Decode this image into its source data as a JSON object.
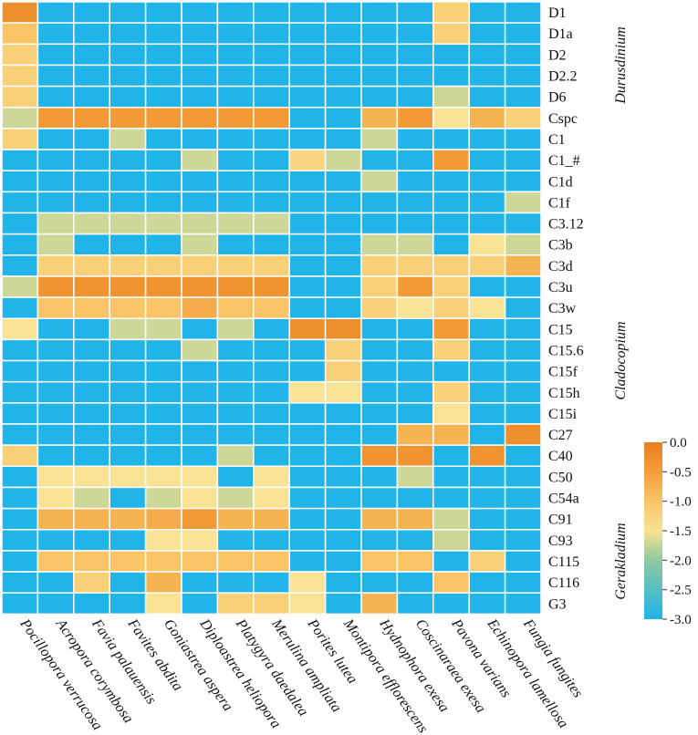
{
  "chart_data": {
    "type": "heatmap",
    "rows": [
      "D1",
      "D1a",
      "D2",
      "D2.2",
      "D6",
      "Cspc",
      "C1",
      "C1_#",
      "C1d",
      "C1f",
      "C3.12",
      "C3b",
      "C3d",
      "C3u",
      "C3w",
      "C15",
      "C15.6",
      "C15f",
      "C15h",
      "C15i",
      "C27",
      "C40",
      "C50",
      "C54a",
      "C91",
      "C93",
      "C115",
      "C116",
      "G3"
    ],
    "columns": [
      "Pocillopora verrucosa",
      "Acropora corymbosa",
      "Favia palauensis",
      "Favites abdita",
      "Goniastrea aspera",
      "Diploastrea heliopora",
      "Platygyra daedalea",
      "Merulina ampliata",
      "Porites lutea",
      "Montipora efflorescens",
      "Hydnophora exesa",
      "Coscinaraea exesa",
      "Pavona varians",
      "Echinopora lamellosa",
      "Fungia fungites"
    ],
    "values": [
      [
        -0.3,
        -3,
        -3,
        -3,
        -3,
        -3,
        -3,
        -3,
        -3,
        -3,
        -3,
        -3,
        -1.2,
        -3,
        -3
      ],
      [
        -1.0,
        -3,
        -3,
        -3,
        -3,
        -3,
        -3,
        -3,
        -3,
        -3,
        -3,
        -3,
        -1.2,
        -3,
        -3
      ],
      [
        -1.2,
        -3,
        -3,
        -3,
        -3,
        -3,
        -3,
        -3,
        -3,
        -3,
        -3,
        -3,
        -3,
        -3,
        -3
      ],
      [
        -1.2,
        -3,
        -3,
        -3,
        -3,
        -3,
        -3,
        -3,
        -3,
        -3,
        -3,
        -3,
        -3,
        -3,
        -3
      ],
      [
        -1.2,
        -3,
        -3,
        -3,
        -3,
        -3,
        -3,
        -3,
        -3,
        -3,
        -3,
        -3,
        -1.7,
        -3,
        -3
      ],
      [
        -1.7,
        -0.5,
        -0.5,
        -0.5,
        -0.5,
        -0.5,
        -0.5,
        -0.5,
        -3,
        -3,
        -0.8,
        -0.5,
        -1.5,
        -0.8,
        -1.2
      ],
      [
        -1.2,
        -3,
        -3,
        -1.7,
        -3,
        -3,
        -3,
        -3,
        -3,
        -3,
        -1.7,
        -3,
        -3,
        -3,
        -3
      ],
      [
        -3,
        -3,
        -3,
        -3,
        -3,
        -1.7,
        -3,
        -3,
        -1.3,
        -1.7,
        -3,
        -3,
        -0.5,
        -3,
        -3
      ],
      [
        -3,
        -3,
        -3,
        -3,
        -3,
        -3,
        -3,
        -3,
        -3,
        -3,
        -1.7,
        -3,
        -3,
        -3,
        -3
      ],
      [
        -3,
        -3,
        -3,
        -3,
        -3,
        -3,
        -3,
        -3,
        -3,
        -3,
        -3,
        -3,
        -3,
        -3,
        -1.7
      ],
      [
        -3,
        -1.7,
        -1.7,
        -1.7,
        -1.7,
        -1.7,
        -1.7,
        -1.7,
        -3,
        -3,
        -3,
        -3,
        -3,
        -3,
        -3
      ],
      [
        -3,
        -1.7,
        -3,
        -3,
        -3,
        -1.7,
        -3,
        -3,
        -3,
        -3,
        -1.7,
        -1.7,
        -3,
        -1.5,
        -1.7
      ],
      [
        -3,
        -1.2,
        -1.2,
        -1.2,
        -1.2,
        -1.2,
        -1.2,
        -1.2,
        -3,
        -3,
        -1.2,
        -1.2,
        -1.2,
        -1.2,
        -0.8
      ],
      [
        -1.7,
        -0.4,
        -0.4,
        -0.4,
        -0.4,
        -0.4,
        -0.4,
        -0.4,
        -3,
        -3,
        -1.2,
        -0.5,
        -1.2,
        -3,
        -3
      ],
      [
        -3,
        -1.0,
        -1.0,
        -1.0,
        -1.0,
        -0.7,
        -1.0,
        -1.0,
        -3,
        -3,
        -1.2,
        -1.5,
        -1.2,
        -1.5,
        -3
      ],
      [
        -1.5,
        -3,
        -3,
        -1.7,
        -1.7,
        -3,
        -1.7,
        -3,
        -0.3,
        -0.3,
        -3,
        -3,
        -0.5,
        -3,
        -3
      ],
      [
        -3,
        -3,
        -3,
        -3,
        -3,
        -1.7,
        -3,
        -3,
        -3,
        -1.2,
        -3,
        -3,
        -1.2,
        -3,
        -3
      ],
      [
        -3,
        -3,
        -3,
        -3,
        -3,
        -3,
        -3,
        -3,
        -3,
        -1.2,
        -3,
        -3,
        -3,
        -3,
        -3
      ],
      [
        -3,
        -3,
        -3,
        -3,
        -3,
        -3,
        -3,
        -3,
        -1.5,
        -1.5,
        -3,
        -3,
        -1.2,
        -3,
        -3
      ],
      [
        -3,
        -3,
        -3,
        -3,
        -3,
        -3,
        -3,
        -3,
        -3,
        -3,
        -3,
        -3,
        -1.5,
        -3,
        -3
      ],
      [
        -3,
        -3,
        -3,
        -3,
        -3,
        -3,
        -3,
        -3,
        -3,
        -3,
        -3,
        -0.8,
        -0.8,
        -3,
        -0.3
      ],
      [
        -1.2,
        -3,
        -3,
        -3,
        -3,
        -3,
        -1.7,
        -3,
        -3,
        -3,
        -0.4,
        -0.4,
        -3,
        -0.4,
        -3
      ],
      [
        -3,
        -1.5,
        -1.5,
        -1.5,
        -1.5,
        -1.5,
        -3,
        -1.5,
        -3,
        -3,
        -3,
        -1.7,
        -3,
        -3,
        -3
      ],
      [
        -3,
        -1.5,
        -1.7,
        -3,
        -1.7,
        -1.5,
        -1.7,
        -1.5,
        -3,
        -3,
        -3,
        -3,
        -3,
        -3,
        -3
      ],
      [
        -3,
        -0.8,
        -0.8,
        -0.8,
        -0.7,
        -0.5,
        -0.8,
        -0.8,
        -3,
        -3,
        -0.8,
        -0.8,
        -1.7,
        -3,
        -3
      ],
      [
        -3,
        -3,
        -3,
        -3,
        -1.5,
        -1.5,
        -3,
        -3,
        -3,
        -3,
        -3,
        -3,
        -1.7,
        -3,
        -3
      ],
      [
        -3,
        -1.0,
        -1.0,
        -1.0,
        -1.0,
        -1.0,
        -1.0,
        -1.0,
        -3,
        -3,
        -1.0,
        -1.0,
        -3,
        -1.2,
        -3
      ],
      [
        -3,
        -3,
        -1.2,
        -3,
        -0.8,
        -3,
        -3,
        -3,
        -1.5,
        -3,
        -3,
        -3,
        -1.0,
        -3,
        -3
      ],
      [
        -3,
        -3,
        -3,
        -3,
        -1.5,
        -3,
        -1.2,
        -1.2,
        -1.5,
        -3,
        -0.8,
        -3,
        -3,
        -3,
        -3
      ]
    ],
    "groups": [
      {
        "name": "Durusdinium",
        "from": "D1",
        "to": "Cspc"
      },
      {
        "name": "Cladocopium",
        "from": "C1",
        "to": "C116"
      },
      {
        "name": "Gerakladium",
        "from": "C91",
        "to": "G3"
      }
    ],
    "colorbar": {
      "ticks": [
        0.0,
        -0.5,
        -1.0,
        -1.5,
        -2.0,
        -2.5,
        -3.0
      ],
      "tick_labels": [
        "0.0",
        "-0.5",
        "-1.0",
        "-1.5",
        "-2.0",
        "-2.5",
        "-3.0"
      ],
      "range": [
        -3.0,
        0.0
      ]
    },
    "colors": [
      "#20b4e8",
      "#8cc9a0",
      "#f8e293",
      "#f8c466",
      "#f29a35",
      "#e87e22"
    ],
    "grid": true
  }
}
